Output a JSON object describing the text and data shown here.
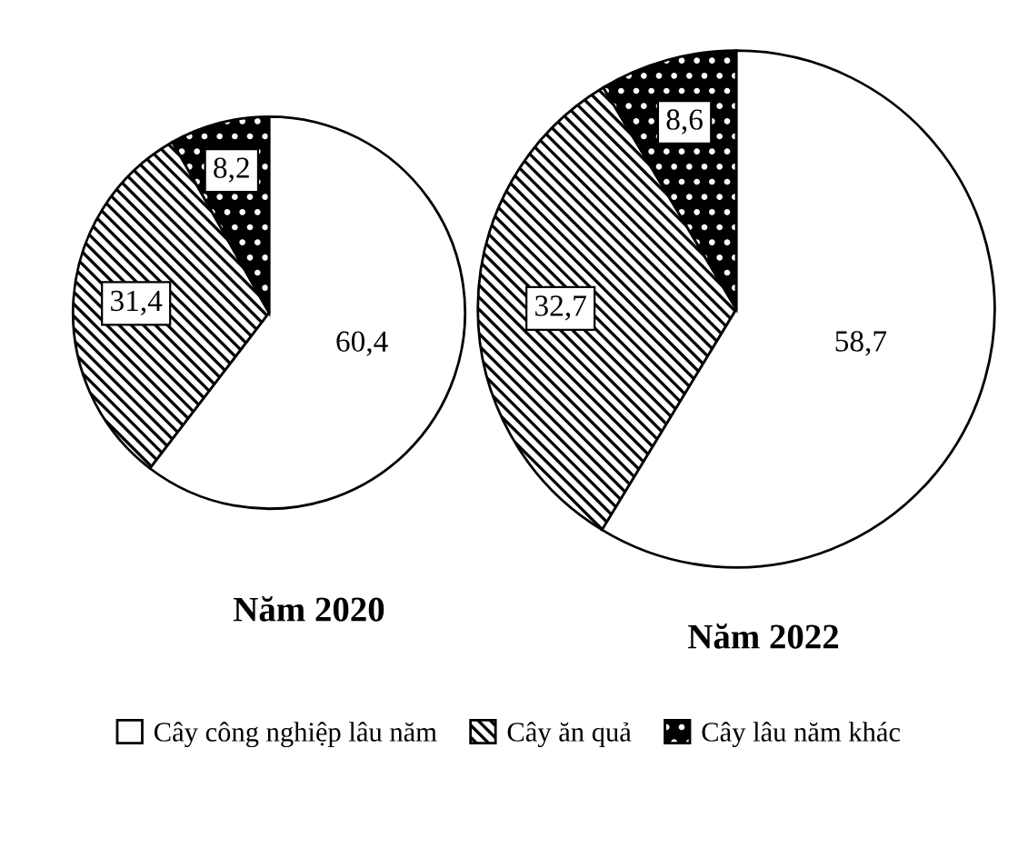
{
  "chart_data": [
    {
      "type": "pie",
      "title": "Năm 2020",
      "categories": [
        "Cây công nghiệp lâu năm",
        "Cây ăn quả",
        "Cây lâu năm khác"
      ],
      "values": [
        60.4,
        31.4,
        8.2
      ],
      "value_labels": [
        "60,4",
        "31,4",
        "8,2"
      ],
      "colors": [
        "#ffffff",
        "#000000",
        "#000000"
      ],
      "legend": "bottom"
    },
    {
      "type": "pie",
      "title": "Năm 2022",
      "values": [
        58.7,
        32.7,
        8.6
      ],
      "value_labels": [
        "58,7",
        "32,7",
        "8,6"
      ],
      "colors": [
        "#ffffff",
        "#000000",
        "#000000"
      ]
    }
  ]
}
